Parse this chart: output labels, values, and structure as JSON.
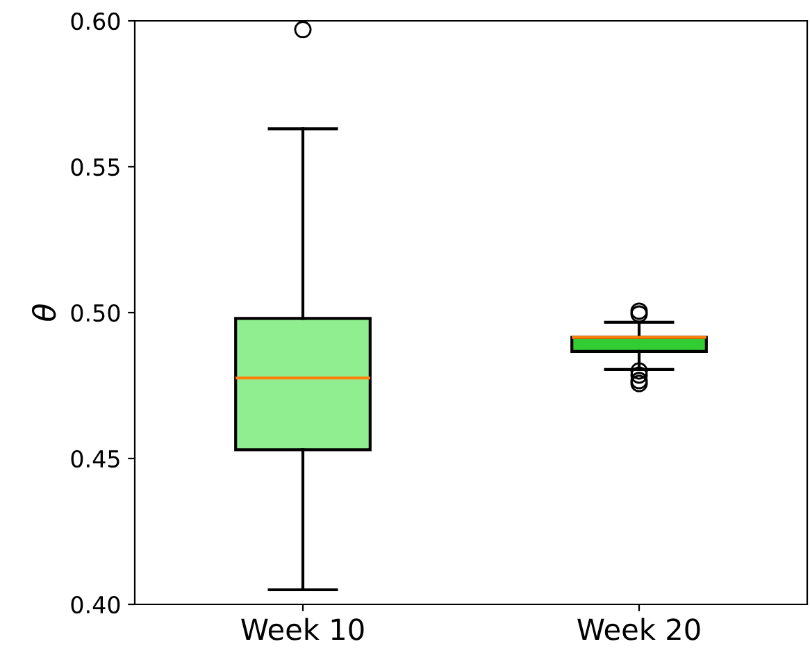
{
  "chart_data": {
    "type": "box",
    "ylabel": "θ",
    "categories": [
      "Week 10",
      "Week 20"
    ],
    "colors": [
      "#90ee90",
      "#32cd32"
    ],
    "boxes": [
      {
        "low": 0.405,
        "q1": 0.453,
        "median": 0.4776,
        "q3": 0.498,
        "high": 0.563,
        "outliers": [
          0.597
        ]
      },
      {
        "low": 0.4805,
        "q1": 0.4867,
        "median": 0.4915,
        "q3": 0.4915,
        "high": 0.4967,
        "outliers": [
          0.5005,
          0.4995,
          0.48,
          0.4786,
          0.4767,
          0.4757
        ]
      }
    ],
    "ylim": [
      0.4,
      0.6
    ],
    "yticks": [
      {
        "value": 0.4,
        "label": "0.40"
      },
      {
        "value": 0.45,
        "label": "0.45"
      },
      {
        "value": 0.5,
        "label": "0.50"
      },
      {
        "value": 0.55,
        "label": "0.55"
      },
      {
        "value": 0.6,
        "label": "0.60"
      }
    ],
    "grid": false
  }
}
